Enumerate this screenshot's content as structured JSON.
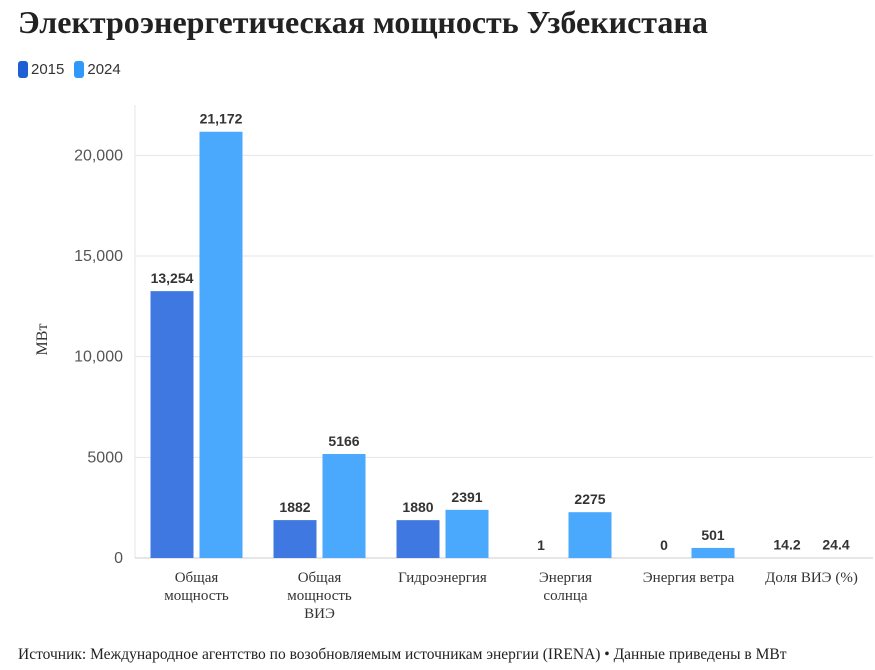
{
  "title": "Электроэнергетическая мощность Узбекистана",
  "source": "Источник: Международное агентство по возобновляемым источникам энергии (IRENA) • Данные приведены в МВт",
  "colors": {
    "series_2015": "#3e78e0",
    "series_2024": "#4aa8fd",
    "grid": "#e6e6e6",
    "axis": "#cccccc"
  },
  "chart_data": {
    "type": "bar",
    "title": "Электроэнергетическая мощность Узбекистана",
    "ylabel": "МВт",
    "xlabel": "",
    "ylim": [
      0,
      22500
    ],
    "yticks": [
      0,
      5000,
      10000,
      15000,
      20000
    ],
    "ytick_labels": [
      "0",
      "5000",
      "10,000",
      "15,000",
      "20,000"
    ],
    "categories": [
      [
        "Общая",
        "мощность"
      ],
      [
        "Общая",
        "мощность",
        "ВИЭ"
      ],
      [
        "Гидроэнергия"
      ],
      [
        "Энергия",
        "солнца"
      ],
      [
        "Энергия ветра"
      ],
      [
        "Доля ВИЭ (%)"
      ]
    ],
    "legend_position": "top-left",
    "grid": true,
    "series": [
      {
        "name": "2015",
        "values": [
          13254,
          1882,
          1880,
          1,
          0,
          14.2
        ],
        "labels": [
          "13,254",
          "1882",
          "1880",
          "1",
          "0",
          "14.2"
        ]
      },
      {
        "name": "2024",
        "values": [
          21172,
          5166,
          2391,
          2275,
          501,
          24.4
        ],
        "labels": [
          "21,172",
          "5166",
          "2391",
          "2275",
          "501",
          "24.4"
        ]
      }
    ]
  }
}
